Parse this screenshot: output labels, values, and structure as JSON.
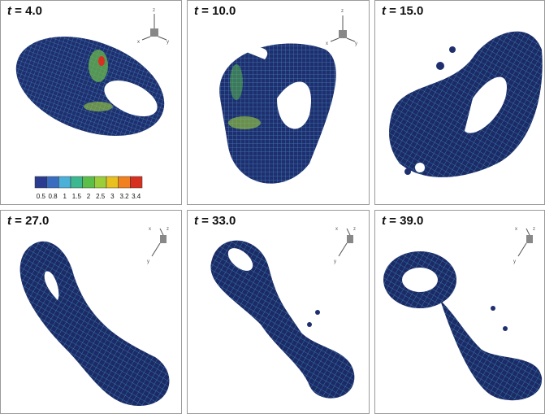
{
  "panels": [
    {
      "symbol": "t",
      "time": "= 4.0",
      "axes": [
        "z",
        "x",
        "y"
      ]
    },
    {
      "symbol": "t",
      "time": "= 10.0",
      "axes": [
        "z",
        "x",
        "y"
      ]
    },
    {
      "symbol": "t",
      "time": "= 15.0"
    },
    {
      "symbol": "t",
      "time": "= 27.0",
      "axes": [
        "x",
        "z",
        "y"
      ]
    },
    {
      "symbol": "t",
      "time": "= 33.0",
      "axes": [
        "x",
        "z",
        "y"
      ]
    },
    {
      "symbol": "t",
      "time": "= 39.0",
      "axes": [
        "x",
        "z",
        "y"
      ]
    }
  ],
  "colorbar": {
    "labels": [
      "0.5",
      "0.8",
      "1",
      "1.5",
      "2",
      "2.5",
      "3",
      "3.2",
      "3.4"
    ],
    "colors": [
      "#2a3c8f",
      "#3a6cc0",
      "#4cb0d8",
      "#3cb890",
      "#5cbf4a",
      "#9cce3c",
      "#e8c020",
      "#f08020",
      "#d83020"
    ]
  }
}
